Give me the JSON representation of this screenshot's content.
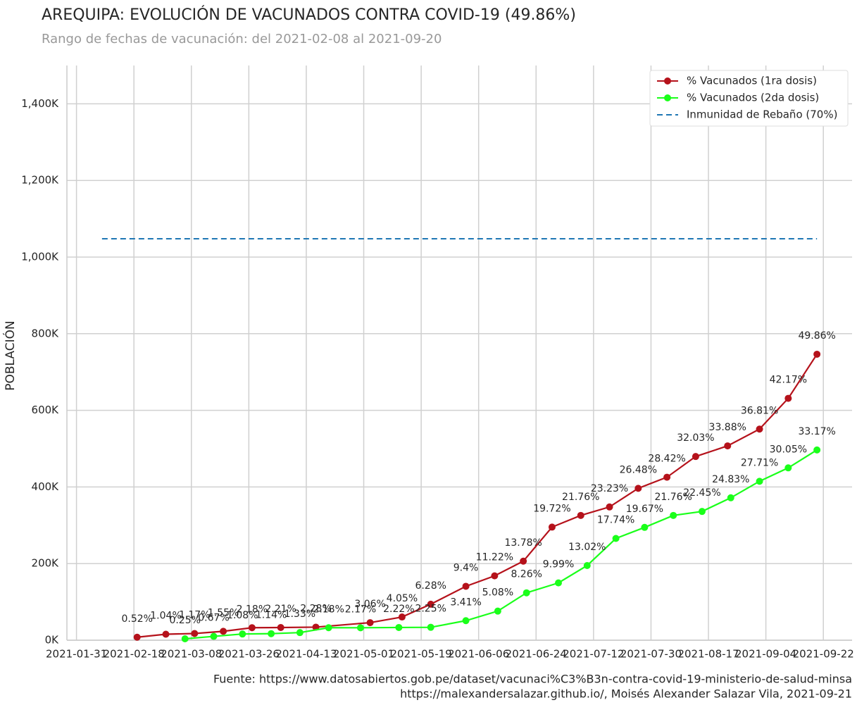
{
  "chart_data": {
    "type": "line",
    "title": "AREQUIPA: EVOLUCIÓN DE VACUNADOS CONTRA COVID-19 (49.86%)",
    "subtitle": "Rango de fechas de vacunación: del 2021-02-08 al 2021-09-20",
    "y_label": "POBLACIÓN",
    "footer": [
      "Fuente: https://www.datosabiertos.gob.pe/dataset/vacunaci%C3%B3n-contra-covid-19-ministerio-de-salud-minsa",
      "https://malexandersalazar.github.io/, Moisés Alexander Salazar Vila, 2021-09-21"
    ],
    "xlim": [
      "2021-01-28",
      "2021-10-01"
    ],
    "xticks": [
      "2021-01-31",
      "2021-02-18",
      "2021-03-08",
      "2021-03-26",
      "2021-04-13",
      "2021-05-01",
      "2021-05-19",
      "2021-06-06",
      "2021-06-24",
      "2021-07-12",
      "2021-07-30",
      "2021-08-17",
      "2021-09-04",
      "2021-09-22"
    ],
    "ylim": [
      0,
      1500000
    ],
    "yticks": [
      {
        "value": 0,
        "label": "0K"
      },
      {
        "value": 200000,
        "label": "200K"
      },
      {
        "value": 400000,
        "label": "400K"
      },
      {
        "value": 600000,
        "label": "600K"
      },
      {
        "value": 800000,
        "label": "800K"
      },
      {
        "value": 1000000,
        "label": "1,000K"
      },
      {
        "value": 1200000,
        "label": "1,200K"
      },
      {
        "value": 1400000,
        "label": "1,400K"
      }
    ],
    "grid": true,
    "legend": "upper right",
    "series": [
      {
        "name": "% Vacunados (1ra dosis)",
        "color": "#b5121b",
        "x": [
          "2021-02-19",
          "2021-02-28",
          "2021-03-09",
          "2021-03-18",
          "2021-03-27",
          "2021-04-05",
          "2021-04-16",
          "2021-05-03",
          "2021-05-13",
          "2021-05-22",
          "2021-06-02",
          "2021-06-11",
          "2021-06-20",
          "2021-06-29",
          "2021-07-08",
          "2021-07-17",
          "2021-07-26",
          "2021-08-04",
          "2021-08-13",
          "2021-08-23",
          "2021-09-02",
          "2021-09-11",
          "2021-09-20"
        ],
        "values": [
          7800,
          15600,
          17500,
          23200,
          32600,
          33100,
          34100,
          45800,
          60600,
          94000,
          140700,
          168000,
          206300,
          295200,
          325700,
          347800,
          396400,
          425400,
          479500,
          507200,
          551000,
          631300,
          746400
        ],
        "point_labels": [
          "0.52%",
          "1.04%",
          "1.17%",
          "1.55%",
          "2.18%",
          "2.21%",
          "2.28%",
          "3.06%",
          "4.05%",
          "6.28%",
          "9.4%",
          "11.22%",
          "13.78%",
          "19.72%",
          "21.76%",
          "23.23%",
          "26.48%",
          "28.42%",
          "32.03%",
          "33.88%",
          "36.81%",
          "42.17%",
          "49.86%"
        ]
      },
      {
        "name": "% Vacunados (2da dosis)",
        "color": "#1aff1a",
        "x": [
          "2021-03-06",
          "2021-03-15",
          "2021-03-24",
          "2021-04-02",
          "2021-04-11",
          "2021-04-20",
          "2021-04-30",
          "2021-05-12",
          "2021-05-22",
          "2021-06-02",
          "2021-06-12",
          "2021-06-21",
          "2021-07-01",
          "2021-07-10",
          "2021-07-19",
          "2021-07-28",
          "2021-08-06",
          "2021-08-15",
          "2021-08-24",
          "2021-09-02",
          "2021-09-11",
          "2021-09-20"
        ],
        "values": [
          3700,
          10000,
          16200,
          17100,
          19900,
          32600,
          32500,
          33200,
          33700,
          51000,
          76000,
          123700,
          149600,
          194900,
          265600,
          294500,
          325700,
          336100,
          371700,
          414800,
          449800,
          496600
        ],
        "point_labels": [
          "0.25%",
          "0.67%",
          "1.08%",
          "1.14%",
          "1.33%",
          "2.18%",
          "2.17%",
          "2.22%",
          "2.25%",
          "3.41%",
          "5.08%",
          "8.26%",
          "9.99%",
          "13.02%",
          "17.74%",
          "19.67%",
          "21.76%",
          "22.45%",
          "24.83%",
          "27.71%",
          "30.05%",
          "33.17%"
        ]
      }
    ],
    "reference_line": {
      "name": "Inmunidad de Rebaño (70%)",
      "value": 1047900,
      "x": [
        "2021-02-08",
        "2021-09-20"
      ],
      "color": "#1f77b4",
      "style": "dashed"
    }
  }
}
